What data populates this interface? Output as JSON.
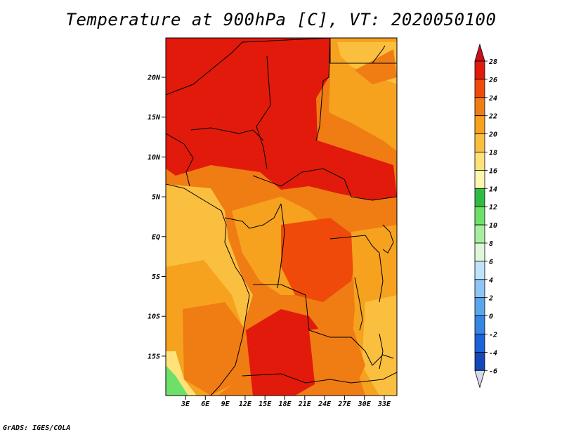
{
  "title": "Temperature at 900hPa [C], VT: 2020050100",
  "credit": "GrADS: IGES/COLA",
  "map": {
    "lat_labels": [
      "20N",
      "15N",
      "10N",
      "5N",
      "EQ",
      "5S",
      "10S",
      "15S"
    ],
    "lon_labels": [
      "3E",
      "6E",
      "9E",
      "12E",
      "15E",
      "18E",
      "21E",
      "24E",
      "27E",
      "30E",
      "33E"
    ]
  },
  "colorbar": {
    "labels": [
      "28",
      "26",
      "24",
      "22",
      "20",
      "18",
      "16",
      "14",
      "12",
      "10",
      "8",
      "6",
      "4",
      "2",
      "0",
      "-2",
      "-4",
      "-6"
    ],
    "colors": [
      "#e11a0c",
      "#f04a0a",
      "#f07c14",
      "#f6a21e",
      "#fbbf3f",
      "#ffe27a",
      "#fff6b0",
      "#2fbc44",
      "#6ee06a",
      "#a7efa0",
      "#dff7d8",
      "#bfe3fb",
      "#8dc6f6",
      "#5aa6ee",
      "#3586e3",
      "#1a62d6",
      "#1448b8",
      "#0c2f9a",
      "#06146b"
    ],
    "top_color": "#c8101a",
    "bottom_color": "#d8d8ef"
  }
}
